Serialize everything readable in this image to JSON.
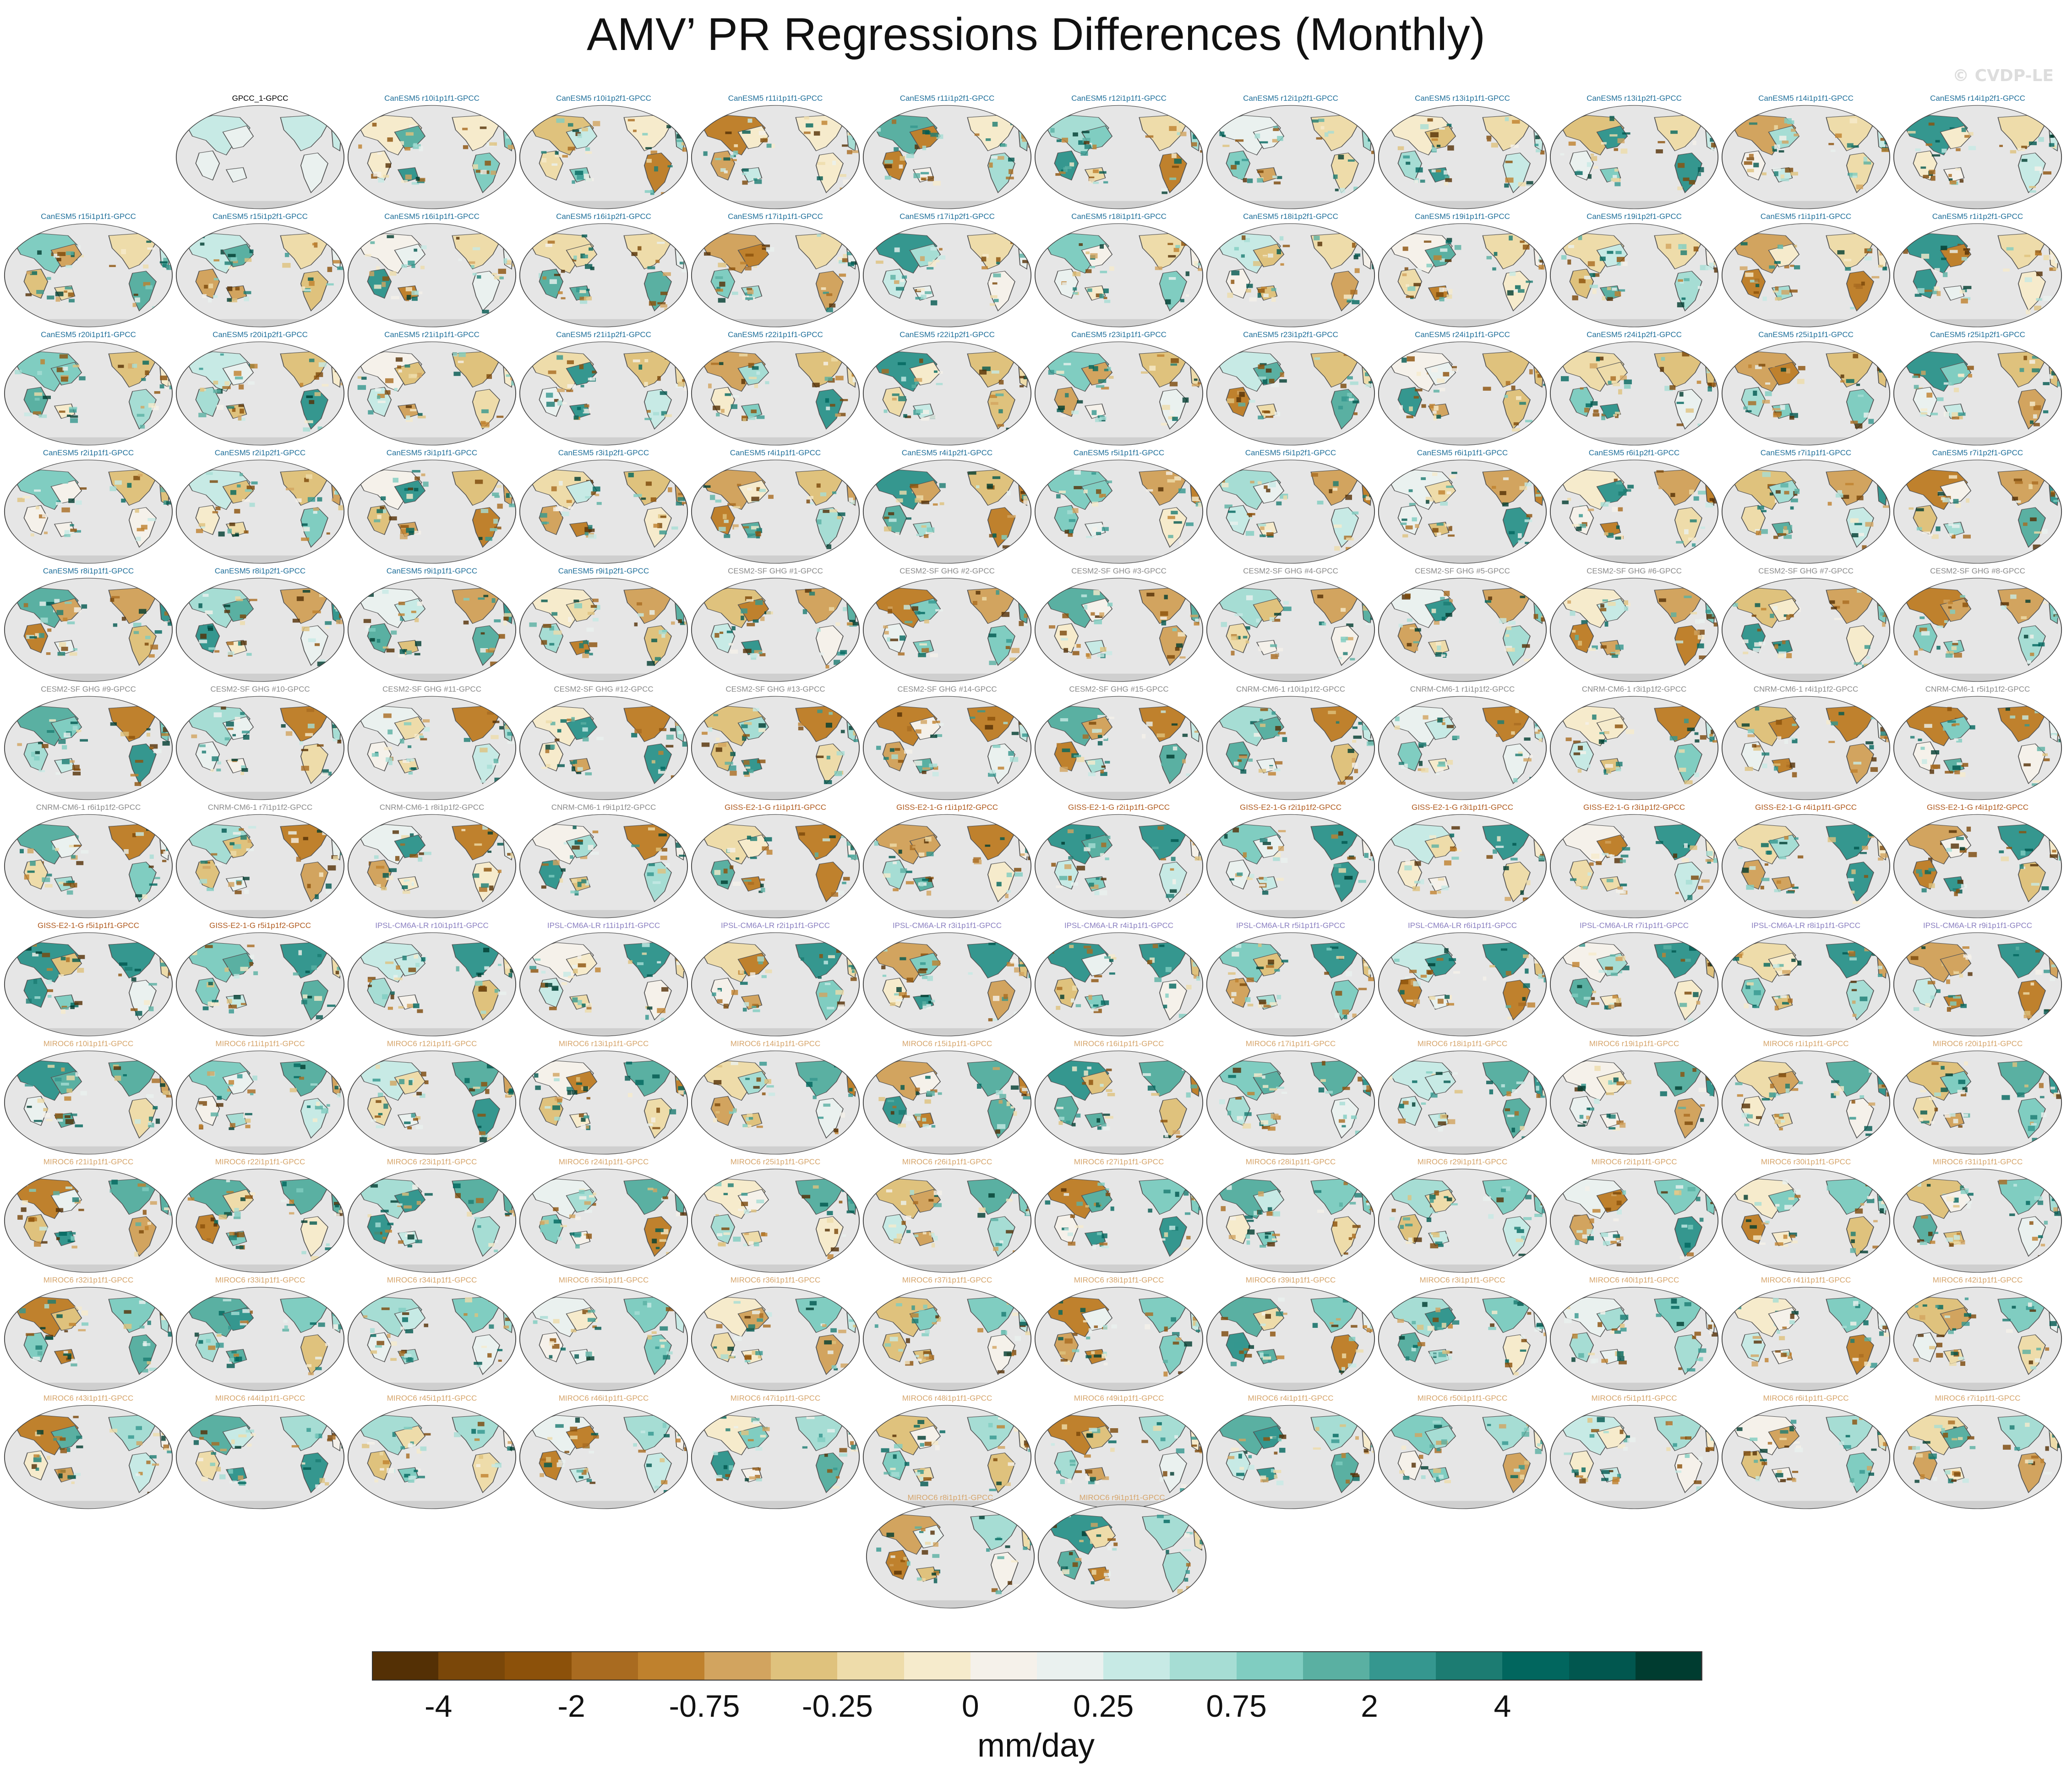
{
  "title": "AMV’ PR Regressions Differences (Monthly)",
  "copyright": "© CVDP-LE",
  "colorbar": {
    "colors": [
      "#543005",
      "#7a4709",
      "#8c510a",
      "#a96b20",
      "#bf812d",
      "#d2a45f",
      "#dfc27d",
      "#eedcaa",
      "#f6ebcc",
      "#f5f1ea",
      "#eaf1ef",
      "#c7eae5",
      "#a6ddd4",
      "#80cdc1",
      "#5ab0a2",
      "#35978f",
      "#1c7c72",
      "#01665e",
      "#01574f",
      "#003c30"
    ],
    "tick_labels": [
      "-4",
      "-2",
      "-0.75",
      "-0.25",
      "0",
      "0.25",
      "0.75",
      "2",
      "4"
    ],
    "tick_after_segment": [
      2,
      4,
      6,
      8,
      10,
      12,
      14,
      16,
      18
    ],
    "unit": "mm/day"
  },
  "model_colors": {
    "obs": "#000000",
    "CanESM5": "#1f6f9a",
    "CESM2-SF": "#8a8a8a",
    "CNRM": "#8a8a8a",
    "GISS": "#b05a1e",
    "IPSL": "#8a7fc0",
    "MIROC6": "#d6a56b"
  },
  "panels": [
    {
      "label": "GPCC_1-GPCC",
      "group": "obs"
    },
    {
      "label": "CanESM5 r10i1p1f1-GPCC",
      "group": "CanESM5"
    },
    {
      "label": "CanESM5 r10i1p2f1-GPCC",
      "group": "CanESM5"
    },
    {
      "label": "CanESM5 r11i1p1f1-GPCC",
      "group": "CanESM5"
    },
    {
      "label": "CanESM5 r11i1p2f1-GPCC",
      "group": "CanESM5"
    },
    {
      "label": "CanESM5 r12i1p1f1-GPCC",
      "group": "CanESM5"
    },
    {
      "label": "CanESM5 r12i1p2f1-GPCC",
      "group": "CanESM5"
    },
    {
      "label": "CanESM5 r13i1p1f1-GPCC",
      "group": "CanESM5"
    },
    {
      "label": "CanESM5 r13i1p2f1-GPCC",
      "group": "CanESM5"
    },
    {
      "label": "CanESM5 r14i1p1f1-GPCC",
      "group": "CanESM5"
    },
    {
      "label": "CanESM5 r14i1p2f1-GPCC",
      "group": "CanESM5"
    },
    {
      "label": "CanESM5 r15i1p1f1-GPCC",
      "group": "CanESM5"
    },
    {
      "label": "CanESM5 r15i1p2f1-GPCC",
      "group": "CanESM5"
    },
    {
      "label": "CanESM5 r16i1p1f1-GPCC",
      "group": "CanESM5"
    },
    {
      "label": "CanESM5 r16i1p2f1-GPCC",
      "group": "CanESM5"
    },
    {
      "label": "CanESM5 r17i1p1f1-GPCC",
      "group": "CanESM5"
    },
    {
      "label": "CanESM5 r17i1p2f1-GPCC",
      "group": "CanESM5"
    },
    {
      "label": "CanESM5 r18i1p1f1-GPCC",
      "group": "CanESM5"
    },
    {
      "label": "CanESM5 r18i1p2f1-GPCC",
      "group": "CanESM5"
    },
    {
      "label": "CanESM5 r19i1p1f1-GPCC",
      "group": "CanESM5"
    },
    {
      "label": "CanESM5 r19i1p2f1-GPCC",
      "group": "CanESM5"
    },
    {
      "label": "CanESM5 r1i1p1f1-GPCC",
      "group": "CanESM5"
    },
    {
      "label": "CanESM5 r1i1p2f1-GPCC",
      "group": "CanESM5"
    },
    {
      "label": "CanESM5 r20i1p1f1-GPCC",
      "group": "CanESM5"
    },
    {
      "label": "CanESM5 r20i1p2f1-GPCC",
      "group": "CanESM5"
    },
    {
      "label": "CanESM5 r21i1p1f1-GPCC",
      "group": "CanESM5"
    },
    {
      "label": "CanESM5 r21i1p2f1-GPCC",
      "group": "CanESM5"
    },
    {
      "label": "CanESM5 r22i1p1f1-GPCC",
      "group": "CanESM5"
    },
    {
      "label": "CanESM5 r22i1p2f1-GPCC",
      "group": "CanESM5"
    },
    {
      "label": "CanESM5 r23i1p1f1-GPCC",
      "group": "CanESM5"
    },
    {
      "label": "CanESM5 r23i1p2f1-GPCC",
      "group": "CanESM5"
    },
    {
      "label": "CanESM5 r24i1p1f1-GPCC",
      "group": "CanESM5"
    },
    {
      "label": "CanESM5 r24i1p2f1-GPCC",
      "group": "CanESM5"
    },
    {
      "label": "CanESM5 r25i1p1f1-GPCC",
      "group": "CanESM5"
    },
    {
      "label": "CanESM5 r25i1p2f1-GPCC",
      "group": "CanESM5"
    },
    {
      "label": "CanESM5 r2i1p1f1-GPCC",
      "group": "CanESM5"
    },
    {
      "label": "CanESM5 r2i1p2f1-GPCC",
      "group": "CanESM5"
    },
    {
      "label": "CanESM5 r3i1p1f1-GPCC",
      "group": "CanESM5"
    },
    {
      "label": "CanESM5 r3i1p2f1-GPCC",
      "group": "CanESM5"
    },
    {
      "label": "CanESM5 r4i1p1f1-GPCC",
      "group": "CanESM5"
    },
    {
      "label": "CanESM5 r4i1p2f1-GPCC",
      "group": "CanESM5"
    },
    {
      "label": "CanESM5 r5i1p1f1-GPCC",
      "group": "CanESM5"
    },
    {
      "label": "CanESM5 r5i1p2f1-GPCC",
      "group": "CanESM5"
    },
    {
      "label": "CanESM5 r6i1p1f1-GPCC",
      "group": "CanESM5"
    },
    {
      "label": "CanESM5 r6i1p2f1-GPCC",
      "group": "CanESM5"
    },
    {
      "label": "CanESM5 r7i1p1f1-GPCC",
      "group": "CanESM5"
    },
    {
      "label": "CanESM5 r7i1p2f1-GPCC",
      "group": "CanESM5"
    },
    {
      "label": "CanESM5 r8i1p1f1-GPCC",
      "group": "CanESM5"
    },
    {
      "label": "CanESM5 r8i1p2f1-GPCC",
      "group": "CanESM5"
    },
    {
      "label": "CanESM5 r9i1p1f1-GPCC",
      "group": "CanESM5"
    },
    {
      "label": "CanESM5 r9i1p2f1-GPCC",
      "group": "CanESM5"
    },
    {
      "label": "CESM2-SF GHG #1-GPCC",
      "group": "CESM2-SF"
    },
    {
      "label": "CESM2-SF GHG #2-GPCC",
      "group": "CESM2-SF"
    },
    {
      "label": "CESM2-SF GHG #3-GPCC",
      "group": "CESM2-SF"
    },
    {
      "label": "CESM2-SF GHG #4-GPCC",
      "group": "CESM2-SF"
    },
    {
      "label": "CESM2-SF GHG #5-GPCC",
      "group": "CESM2-SF"
    },
    {
      "label": "CESM2-SF GHG #6-GPCC",
      "group": "CESM2-SF"
    },
    {
      "label": "CESM2-SF GHG #7-GPCC",
      "group": "CESM2-SF"
    },
    {
      "label": "CESM2-SF GHG #8-GPCC",
      "group": "CESM2-SF"
    },
    {
      "label": "CESM2-SF GHG #9-GPCC",
      "group": "CESM2-SF"
    },
    {
      "label": "CESM2-SF GHG #10-GPCC",
      "group": "CESM2-SF"
    },
    {
      "label": "CESM2-SF GHG #11-GPCC",
      "group": "CESM2-SF"
    },
    {
      "label": "CESM2-SF GHG #12-GPCC",
      "group": "CESM2-SF"
    },
    {
      "label": "CESM2-SF GHG #13-GPCC",
      "group": "CESM2-SF"
    },
    {
      "label": "CESM2-SF GHG #14-GPCC",
      "group": "CESM2-SF"
    },
    {
      "label": "CESM2-SF GHG #15-GPCC",
      "group": "CESM2-SF"
    },
    {
      "label": "CNRM-CM6-1 r10i1p1f2-GPCC",
      "group": "CNRM"
    },
    {
      "label": "CNRM-CM6-1 r1i1p1f2-GPCC",
      "group": "CNRM"
    },
    {
      "label": "CNRM-CM6-1 r3i1p1f2-GPCC",
      "group": "CNRM"
    },
    {
      "label": "CNRM-CM6-1 r4i1p1f2-GPCC",
      "group": "CNRM"
    },
    {
      "label": "CNRM-CM6-1 r5i1p1f2-GPCC",
      "group": "CNRM"
    },
    {
      "label": "CNRM-CM6-1 r6i1p1f2-GPCC",
      "group": "CNRM"
    },
    {
      "label": "CNRM-CM6-1 r7i1p1f2-GPCC",
      "group": "CNRM"
    },
    {
      "label": "CNRM-CM6-1 r8i1p1f2-GPCC",
      "group": "CNRM"
    },
    {
      "label": "CNRM-CM6-1 r9i1p1f2-GPCC",
      "group": "CNRM"
    },
    {
      "label": "GISS-E2-1-G r1i1p1f1-GPCC",
      "group": "GISS"
    },
    {
      "label": "GISS-E2-1-G r1i1p1f2-GPCC",
      "group": "GISS"
    },
    {
      "label": "GISS-E2-1-G r2i1p1f1-GPCC",
      "group": "GISS"
    },
    {
      "label": "GISS-E2-1-G r2i1p1f2-GPCC",
      "group": "GISS"
    },
    {
      "label": "GISS-E2-1-G r3i1p1f1-GPCC",
      "group": "GISS"
    },
    {
      "label": "GISS-E2-1-G r3i1p1f2-GPCC",
      "group": "GISS"
    },
    {
      "label": "GISS-E2-1-G r4i1p1f1-GPCC",
      "group": "GISS"
    },
    {
      "label": "GISS-E2-1-G r4i1p1f2-GPCC",
      "group": "GISS"
    },
    {
      "label": "GISS-E2-1-G r5i1p1f1-GPCC",
      "group": "GISS"
    },
    {
      "label": "GISS-E2-1-G r5i1p1f2-GPCC",
      "group": "GISS"
    },
    {
      "label": "IPSL-CM6A-LR r10i1p1f1-GPCC",
      "group": "IPSL"
    },
    {
      "label": "IPSL-CM6A-LR r11i1p1f1-GPCC",
      "group": "IPSL"
    },
    {
      "label": "IPSL-CM6A-LR r2i1p1f1-GPCC",
      "group": "IPSL"
    },
    {
      "label": "IPSL-CM6A-LR r3i1p1f1-GPCC",
      "group": "IPSL"
    },
    {
      "label": "IPSL-CM6A-LR r4i1p1f1-GPCC",
      "group": "IPSL"
    },
    {
      "label": "IPSL-CM6A-LR r5i1p1f1-GPCC",
      "group": "IPSL"
    },
    {
      "label": "IPSL-CM6A-LR r6i1p1f1-GPCC",
      "group": "IPSL"
    },
    {
      "label": "IPSL-CM6A-LR r7i1p1f1-GPCC",
      "group": "IPSL"
    },
    {
      "label": "IPSL-CM6A-LR r8i1p1f1-GPCC",
      "group": "IPSL"
    },
    {
      "label": "IPSL-CM6A-LR r9i1p1f1-GPCC",
      "group": "IPSL"
    },
    {
      "label": "MIROC6 r10i1p1f1-GPCC",
      "group": "MIROC6"
    },
    {
      "label": "MIROC6 r11i1p1f1-GPCC",
      "group": "MIROC6"
    },
    {
      "label": "MIROC6 r12i1p1f1-GPCC",
      "group": "MIROC6"
    },
    {
      "label": "MIROC6 r13i1p1f1-GPCC",
      "group": "MIROC6"
    },
    {
      "label": "MIROC6 r14i1p1f1-GPCC",
      "group": "MIROC6"
    },
    {
      "label": "MIROC6 r15i1p1f1-GPCC",
      "group": "MIROC6"
    },
    {
      "label": "MIROC6 r16i1p1f1-GPCC",
      "group": "MIROC6"
    },
    {
      "label": "MIROC6 r17i1p1f1-GPCC",
      "group": "MIROC6"
    },
    {
      "label": "MIROC6 r18i1p1f1-GPCC",
      "group": "MIROC6"
    },
    {
      "label": "MIROC6 r19i1p1f1-GPCC",
      "group": "MIROC6"
    },
    {
      "label": "MIROC6 r1i1p1f1-GPCC",
      "group": "MIROC6"
    },
    {
      "label": "MIROC6 r20i1p1f1-GPCC",
      "group": "MIROC6"
    },
    {
      "label": "MIROC6 r21i1p1f1-GPCC",
      "group": "MIROC6"
    },
    {
      "label": "MIROC6 r22i1p1f1-GPCC",
      "group": "MIROC6"
    },
    {
      "label": "MIROC6 r23i1p1f1-GPCC",
      "group": "MIROC6"
    },
    {
      "label": "MIROC6 r24i1p1f1-GPCC",
      "group": "MIROC6"
    },
    {
      "label": "MIROC6 r25i1p1f1-GPCC",
      "group": "MIROC6"
    },
    {
      "label": "MIROC6 r26i1p1f1-GPCC",
      "group": "MIROC6"
    },
    {
      "label": "MIROC6 r27i1p1f1-GPCC",
      "group": "MIROC6"
    },
    {
      "label": "MIROC6 r28i1p1f1-GPCC",
      "group": "MIROC6"
    },
    {
      "label": "MIROC6 r29i1p1f1-GPCC",
      "group": "MIROC6"
    },
    {
      "label": "MIROC6 r2i1p1f1-GPCC",
      "group": "MIROC6"
    },
    {
      "label": "MIROC6 r30i1p1f1-GPCC",
      "group": "MIROC6"
    },
    {
      "label": "MIROC6 r31i1p1f1-GPCC",
      "group": "MIROC6"
    },
    {
      "label": "MIROC6 r32i1p1f1-GPCC",
      "group": "MIROC6"
    },
    {
      "label": "MIROC6 r33i1p1f1-GPCC",
      "group": "MIROC6"
    },
    {
      "label": "MIROC6 r34i1p1f1-GPCC",
      "group": "MIROC6"
    },
    {
      "label": "MIROC6 r35i1p1f1-GPCC",
      "group": "MIROC6"
    },
    {
      "label": "MIROC6 r36i1p1f1-GPCC",
      "group": "MIROC6"
    },
    {
      "label": "MIROC6 r37i1p1f1-GPCC",
      "group": "MIROC6"
    },
    {
      "label": "MIROC6 r38i1p1f1-GPCC",
      "group": "MIROC6"
    },
    {
      "label": "MIROC6 r39i1p1f1-GPCC",
      "group": "MIROC6"
    },
    {
      "label": "MIROC6 r3i1p1f1-GPCC",
      "group": "MIROC6"
    },
    {
      "label": "MIROC6 r40i1p1f1-GPCC",
      "group": "MIROC6"
    },
    {
      "label": "MIROC6 r41i1p1f1-GPCC",
      "group": "MIROC6"
    },
    {
      "label": "MIROC6 r42i1p1f1-GPCC",
      "group": "MIROC6"
    },
    {
      "label": "MIROC6 r43i1p1f1-GPCC",
      "group": "MIROC6"
    },
    {
      "label": "MIROC6 r44i1p1f1-GPCC",
      "group": "MIROC6"
    },
    {
      "label": "MIROC6 r45i1p1f1-GPCC",
      "group": "MIROC6"
    },
    {
      "label": "MIROC6 r46i1p1f1-GPCC",
      "group": "MIROC6"
    },
    {
      "label": "MIROC6 r47i1p1f1-GPCC",
      "group": "MIROC6"
    },
    {
      "label": "MIROC6 r48i1p1f1-GPCC",
      "group": "MIROC6"
    },
    {
      "label": "MIROC6 r49i1p1f1-GPCC",
      "group": "MIROC6"
    },
    {
      "label": "MIROC6 r4i1p1f1-GPCC",
      "group": "MIROC6"
    },
    {
      "label": "MIROC6 r50i1p1f1-GPCC",
      "group": "MIROC6"
    },
    {
      "label": "MIROC6 r5i1p1f1-GPCC",
      "group": "MIROC6"
    },
    {
      "label": "MIROC6 r6i1p1f1-GPCC",
      "group": "MIROC6"
    },
    {
      "label": "MIROC6 r7i1p1f1-GPCC",
      "group": "MIROC6"
    },
    {
      "label": "MIROC6 r8i1p1f1-GPCC",
      "group": "MIROC6"
    },
    {
      "label": "MIROC6 r9i1p1f1-GPCC",
      "group": "MIROC6"
    }
  ]
}
